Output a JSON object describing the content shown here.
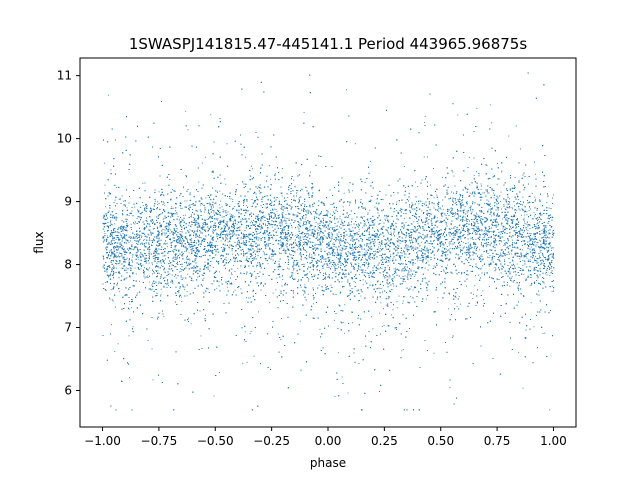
{
  "chart_data": {
    "type": "scatter",
    "title": "1SWASPJ141815.47-445141.1 Period 443965.96875s",
    "xlabel": "phase",
    "ylabel": "flux",
    "xlim": [
      -1.1,
      1.1
    ],
    "ylim": [
      5.42,
      11.28
    ],
    "xticks": [
      -1.0,
      -0.75,
      -0.5,
      -0.25,
      0.0,
      0.25,
      0.5,
      0.75,
      1.0
    ],
    "xtick_labels": [
      "−1.00",
      "−0.75",
      "−0.50",
      "−0.25",
      "0.00",
      "0.25",
      "0.50",
      "0.75",
      "1.00"
    ],
    "yticks": [
      6,
      7,
      8,
      9,
      10,
      11
    ],
    "ytick_labels": [
      "6",
      "7",
      "8",
      "9",
      "10",
      "11"
    ],
    "grid": false,
    "legend": "none",
    "marker_color": "#1f77b4",
    "series": [
      {
        "x_range": [
          -1.0,
          1.0
        ],
        "profile": [
          {
            "x": -1.0,
            "median": 8.3
          },
          {
            "x": -0.75,
            "median": 8.35
          },
          {
            "x": -0.5,
            "median": 8.45
          },
          {
            "x": -0.3,
            "median": 8.55
          },
          {
            "x": -0.1,
            "median": 8.45
          },
          {
            "x": 0.0,
            "median": 8.25
          },
          {
            "x": 0.1,
            "median": 8.2
          },
          {
            "x": 0.25,
            "median": 8.3
          },
          {
            "x": 0.5,
            "median": 8.45
          },
          {
            "x": 0.7,
            "median": 8.55
          },
          {
            "x": 0.9,
            "median": 8.45
          },
          {
            "x": 1.0,
            "median": 8.3
          }
        ],
        "spread": 0.4,
        "y_extent": [
          5.7,
          11.05
        ],
        "n_points": 22000
      }
    ]
  }
}
